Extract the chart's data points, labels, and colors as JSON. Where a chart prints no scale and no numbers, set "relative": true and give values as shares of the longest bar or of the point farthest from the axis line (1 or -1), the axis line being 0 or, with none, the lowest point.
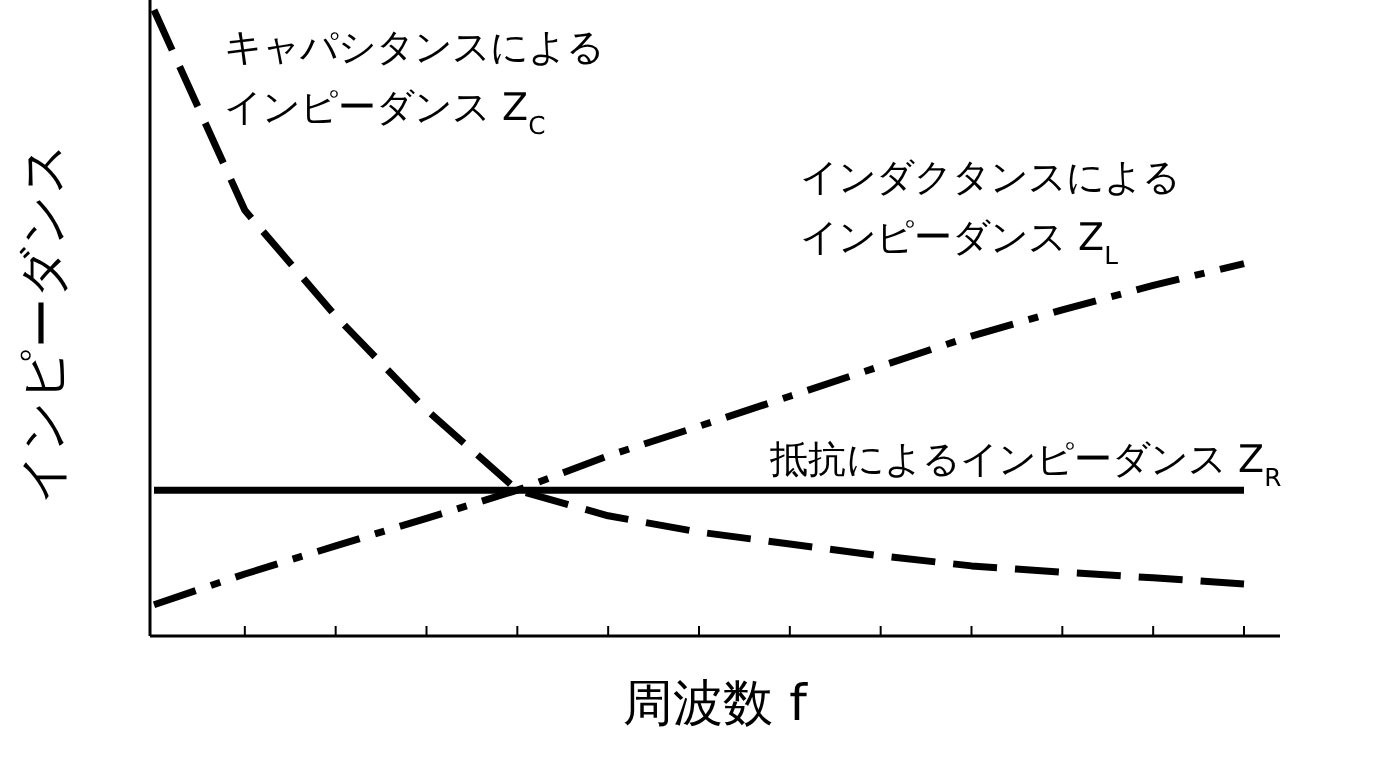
{
  "chart_data": {
    "type": "line",
    "relative": true,
    "xlabel": "周波数 f",
    "ylabel": "インピーダンス",
    "categories": [
      null,
      null,
      null,
      null,
      null,
      null,
      null,
      null,
      null,
      null,
      null,
      null,
      null
    ],
    "series": [
      {
        "name": "キャパシタンスによるインピーダンス Z$_{C}$",
        "color": "#000000",
        "line_style": "dashed",
        "values": [
          1.0,
          0.68,
          0.511,
          0.361,
          0.233,
          0.192,
          0.166,
          0.147,
          0.128,
          0.112,
          0.102,
          0.093,
          0.083
        ]
      },
      {
        "name": "インダクタンスによるインピーダンス Z$_{L}$",
        "color": "#000000",
        "line_style": "dashdot",
        "values": [
          0.05,
          0.099,
          0.144,
          0.188,
          0.233,
          0.288,
          0.335,
          0.383,
          0.431,
          0.479,
          0.521,
          0.56,
          0.595
        ]
      },
      {
        "name": "抵抗によるインピーダンス Z$_{R}$",
        "color": "#000000",
        "line_style": "solid",
        "values": [
          0.233,
          0.233,
          0.233,
          0.233,
          0.233,
          0.233,
          0.233,
          0.233,
          0.233,
          0.233,
          0.233,
          0.233,
          0.233
        ]
      }
    ],
    "legend": false,
    "grid": false
  }
}
